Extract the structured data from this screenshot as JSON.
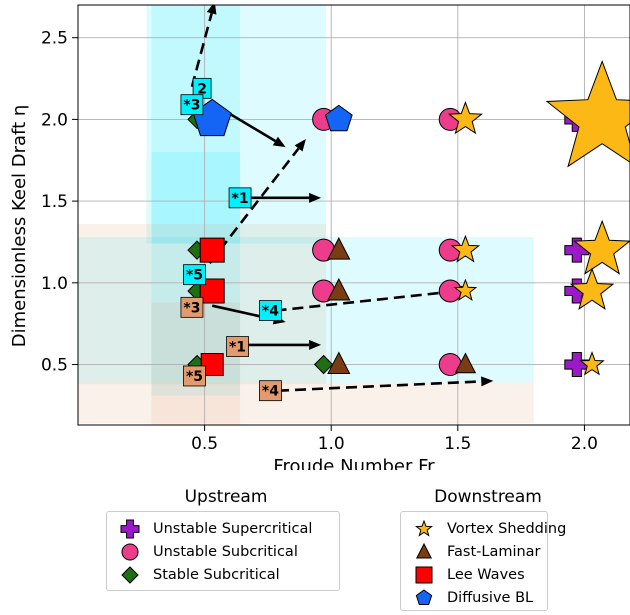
{
  "chart_data": {
    "type": "scatter",
    "xlabel": "Froude Number Fr",
    "ylabel": "Dimensionless Keel Draft η",
    "xlim": [
      0.0,
      2.18
    ],
    "ylim": [
      0.13,
      2.7
    ],
    "x_ticks": [
      0.5,
      1.0,
      1.5,
      2.0
    ],
    "x_tick_labels": [
      "0.5",
      "1.0",
      "1.5",
      "2.0"
    ],
    "y_ticks": [
      0.5,
      1.0,
      1.5,
      2.0,
      2.5
    ],
    "y_tick_labels": [
      "0.5",
      "1.0",
      "1.5",
      "2.0",
      "2.5"
    ],
    "grid": true,
    "colors": {
      "unstable_supercritical": "#9b19c8",
      "unstable_subcritical": "#ee3c8c",
      "stable_subcritical": "#1f6e12",
      "vortex_shedding": "#fcb814",
      "fast_laminar": "#7a3c12",
      "lee_waves": "#ff0000",
      "diffusive_bl": "#1465f5",
      "cyan_region": "#00e5ff",
      "salmon_region": "#e39a6f",
      "label_cyan": "#00f0ff",
      "label_salmon": "#e39a6f"
    },
    "regions": [
      {
        "color": "cyan",
        "x0": 0.27,
        "x1": 0.98,
        "y0": 1.24,
        "y1": 2.7
      },
      {
        "color": "cyan",
        "x0": 0.29,
        "x1": 0.64,
        "y0": 1.24,
        "y1": 2.7
      },
      {
        "color": "cyan",
        "x0": 0.29,
        "x1": 0.64,
        "y0": 0.31,
        "y1": 1.8
      },
      {
        "color": "cyan",
        "x0": 0.0,
        "x1": 1.8,
        "y0": 0.39,
        "y1": 1.28
      },
      {
        "color": "salmon",
        "x0": 0.0,
        "x1": 0.98,
        "y0": 0.38,
        "y1": 1.36
      },
      {
        "color": "salmon",
        "x0": 0.29,
        "x1": 0.64,
        "y0": 0.12,
        "y1": 0.88
      },
      {
        "color": "salmon",
        "x0": 0.0,
        "x1": 1.8,
        "y0": 0.14,
        "y1": 0.39
      }
    ],
    "upstream_points": [
      {
        "x": 1.97,
        "y": 2.0,
        "marker": "plus",
        "class": "Unstable Supercritical"
      },
      {
        "x": 1.97,
        "y": 1.2,
        "marker": "plus",
        "class": "Unstable Supercritical"
      },
      {
        "x": 1.97,
        "y": 0.95,
        "marker": "plus",
        "class": "Unstable Supercritical"
      },
      {
        "x": 1.97,
        "y": 0.5,
        "marker": "plus",
        "class": "Unstable Supercritical"
      },
      {
        "x": 0.97,
        "y": 2.0,
        "marker": "circle",
        "class": "Unstable Subcritical"
      },
      {
        "x": 1.47,
        "y": 2.0,
        "marker": "circle",
        "class": "Unstable Subcritical"
      },
      {
        "x": 0.97,
        "y": 1.2,
        "marker": "circle",
        "class": "Unstable Subcritical"
      },
      {
        "x": 1.47,
        "y": 1.2,
        "marker": "circle",
        "class": "Unstable Subcritical"
      },
      {
        "x": 0.97,
        "y": 0.95,
        "marker": "circle",
        "class": "Unstable Subcritical"
      },
      {
        "x": 1.47,
        "y": 0.95,
        "marker": "circle",
        "class": "Unstable Subcritical"
      },
      {
        "x": 1.47,
        "y": 0.5,
        "marker": "circle",
        "class": "Unstable Subcritical"
      },
      {
        "x": 0.47,
        "y": 2.0,
        "marker": "diamond",
        "class": "Stable Subcritical"
      },
      {
        "x": 0.47,
        "y": 1.2,
        "marker": "diamond",
        "class": "Stable Subcritical"
      },
      {
        "x": 0.47,
        "y": 0.95,
        "marker": "diamond",
        "class": "Stable Subcritical"
      },
      {
        "x": 0.47,
        "y": 0.5,
        "marker": "diamond",
        "class": "Stable Subcritical"
      },
      {
        "x": 0.97,
        "y": 0.5,
        "marker": "diamond",
        "class": "Stable Subcritical"
      }
    ],
    "downstream_points": [
      {
        "x": 0.53,
        "y": 2.0,
        "marker": "pentagon",
        "size": 20,
        "class": "Diffusive BL"
      },
      {
        "x": 1.03,
        "y": 2.0,
        "marker": "pentagon",
        "size": 14,
        "class": "Diffusive BL"
      },
      {
        "x": 1.53,
        "y": 2.0,
        "marker": "star",
        "size": 17,
        "class": "Vortex Shedding"
      },
      {
        "x": 2.07,
        "y": 2.0,
        "marker": "star",
        "size": 58,
        "class": "Vortex Shedding"
      },
      {
        "x": 0.53,
        "y": 1.2,
        "marker": "square",
        "size": 12,
        "class": "Lee Waves"
      },
      {
        "x": 1.03,
        "y": 1.2,
        "marker": "triangle",
        "size": 12,
        "class": "Fast-Laminar"
      },
      {
        "x": 1.53,
        "y": 1.2,
        "marker": "star",
        "size": 14,
        "class": "Vortex Shedding"
      },
      {
        "x": 2.07,
        "y": 1.2,
        "marker": "star",
        "size": 29,
        "class": "Vortex Shedding"
      },
      {
        "x": 0.53,
        "y": 0.95,
        "marker": "square",
        "size": 12,
        "class": "Lee Waves"
      },
      {
        "x": 1.03,
        "y": 0.95,
        "marker": "triangle",
        "size": 12,
        "class": "Fast-Laminar"
      },
      {
        "x": 1.53,
        "y": 0.95,
        "marker": "star",
        "size": 11,
        "class": "Vortex Shedding"
      },
      {
        "x": 2.03,
        "y": 0.95,
        "marker": "star",
        "size": 22,
        "class": "Vortex Shedding"
      },
      {
        "x": 0.53,
        "y": 0.5,
        "marker": "square",
        "size": 11,
        "class": "Lee Waves"
      },
      {
        "x": 1.03,
        "y": 0.5,
        "marker": "triangle",
        "size": 12,
        "class": "Fast-Laminar"
      },
      {
        "x": 1.53,
        "y": 0.5,
        "marker": "triangle",
        "size": 11,
        "class": "Fast-Laminar"
      },
      {
        "x": 2.03,
        "y": 0.5,
        "marker": "star",
        "size": 12,
        "class": "Vortex Shedding"
      }
    ],
    "arrows": [
      {
        "from": [
          0.55,
          2.08
        ],
        "to": [
          0.82,
          1.83
        ],
        "dashed": false
      },
      {
        "from": [
          0.62,
          1.52
        ],
        "to": [
          0.96,
          1.52
        ],
        "dashed": false
      },
      {
        "from": [
          0.61,
          0.62
        ],
        "to": [
          0.96,
          0.62
        ],
        "dashed": false
      },
      {
        "from": [
          0.53,
          0.86
        ],
        "to": [
          0.82,
          0.76
        ],
        "dashed": false
      },
      {
        "from": [
          0.52,
          1.12
        ],
        "to": [
          0.9,
          1.88
        ],
        "dashed": true
      },
      {
        "from": [
          0.45,
          2.2
        ],
        "to": [
          0.54,
          2.72
        ],
        "dashed": true
      },
      {
        "from": [
          0.78,
          0.83
        ],
        "to": [
          1.56,
          0.96
        ],
        "dashed": true
      },
      {
        "from": [
          0.79,
          0.34
        ],
        "to": [
          1.64,
          0.4
        ],
        "dashed": true
      }
    ],
    "labels": [
      {
        "text": "2",
        "x": 0.49,
        "y": 2.19,
        "color": "cyan"
      },
      {
        "text": "*3",
        "x": 0.45,
        "y": 2.09,
        "color": "cyan"
      },
      {
        "text": "*1",
        "x": 0.64,
        "y": 1.52,
        "color": "cyan"
      },
      {
        "text": "*5",
        "x": 0.46,
        "y": 1.05,
        "color": "cyan"
      },
      {
        "text": "*4",
        "x": 0.76,
        "y": 0.83,
        "color": "cyan"
      },
      {
        "text": "*3",
        "x": 0.45,
        "y": 0.85,
        "color": "salmon"
      },
      {
        "text": "*1",
        "x": 0.63,
        "y": 0.61,
        "color": "salmon"
      },
      {
        "text": "*5",
        "x": 0.46,
        "y": 0.43,
        "color": "salmon"
      },
      {
        "text": "*4",
        "x": 0.76,
        "y": 0.34,
        "color": "salmon"
      }
    ],
    "legend_upstream": {
      "title": "Upstream",
      "entries": [
        {
          "label": "Unstable Supercritical",
          "marker": "plus",
          "color": "#9b19c8"
        },
        {
          "label": "Unstable Subcritical",
          "marker": "circle",
          "color": "#ee3c8c"
        },
        {
          "label": "Stable Subcritical",
          "marker": "diamond",
          "color": "#1f6e12"
        }
      ]
    },
    "legend_downstream": {
      "title": "Downstream",
      "entries": [
        {
          "label": "Vortex Shedding",
          "marker": "star",
          "color": "#fcb814"
        },
        {
          "label": "Fast-Laminar",
          "marker": "triangle",
          "color": "#7a3c12"
        },
        {
          "label": "Lee Waves",
          "marker": "square",
          "color": "#ff0000"
        },
        {
          "label": "Diffusive BL",
          "marker": "pentagon",
          "color": "#1465f5"
        }
      ]
    }
  }
}
